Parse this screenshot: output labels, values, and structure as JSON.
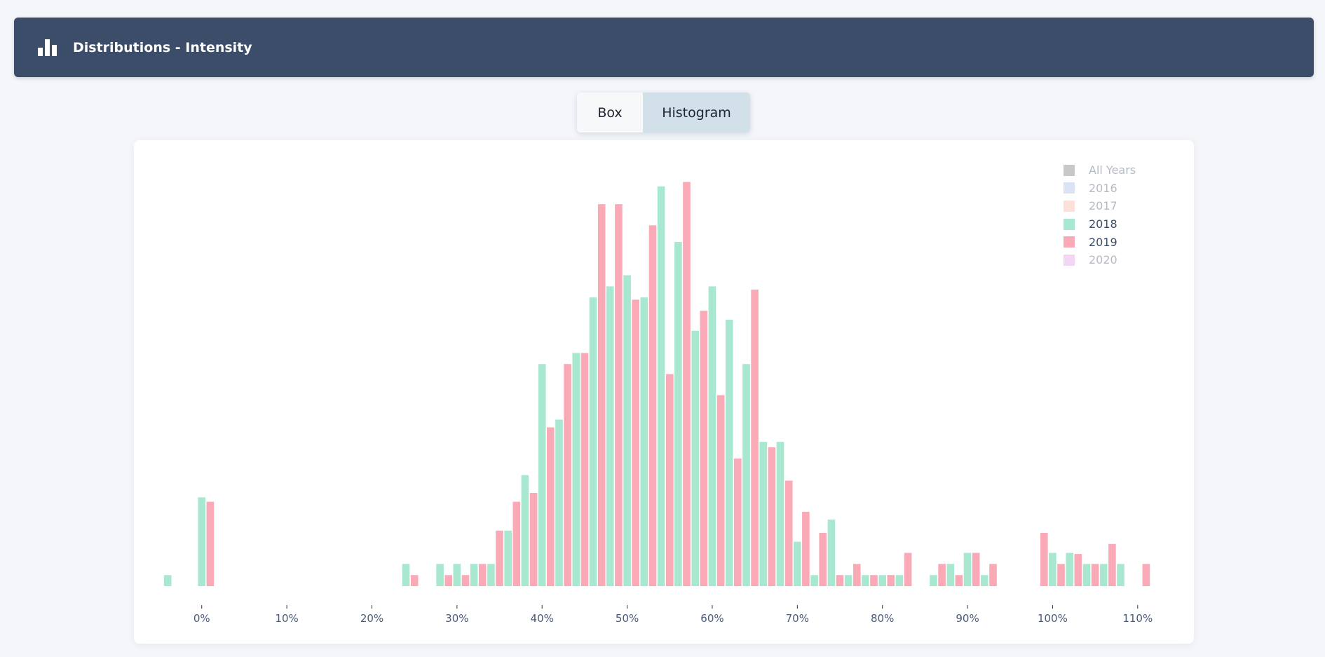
{
  "header": {
    "title": "Distributions - Intensity",
    "icon": "bar-chart-icon"
  },
  "toggle": {
    "box_label": "Box",
    "histogram_label": "Histogram",
    "active": "Histogram"
  },
  "legend": {
    "items": [
      {
        "label": "All Years",
        "color": "#c8c8c8",
        "active": false
      },
      {
        "label": "2016",
        "color": "#dde3f7",
        "active": false
      },
      {
        "label": "2017",
        "color": "#fde0da",
        "active": false
      },
      {
        "label": "2018",
        "color": "#a8e8d0",
        "active": true
      },
      {
        "label": "2019",
        "color": "#f9aab6",
        "active": true
      },
      {
        "label": "2020",
        "color": "#f3d5f5",
        "active": false
      }
    ]
  },
  "colors": {
    "inactive_text": "#b4bac6",
    "active_text": "#3c4d69"
  },
  "chart_data": {
    "type": "bar",
    "x_unit": "percent",
    "bin_width": 2,
    "xlim": [
      -5.5,
      111.5
    ],
    "x_ticks": [
      0,
      10,
      20,
      30,
      40,
      50,
      60,
      70,
      80,
      90,
      100,
      110
    ],
    "x_tick_labels": [
      "0%",
      "10%",
      "20%",
      "30%",
      "40%",
      "50%",
      "60%",
      "70%",
      "80%",
      "90%",
      "100%",
      "110%"
    ],
    "ylim": [
      0,
      37
    ],
    "series": [
      {
        "name": "2018",
        "color": "#a8e8d0",
        "points": [
          [
            -4,
            1
          ],
          [
            0,
            8
          ],
          [
            24,
            2
          ],
          [
            28,
            2
          ],
          [
            30,
            2
          ],
          [
            32,
            2
          ],
          [
            34,
            2
          ],
          [
            36,
            5
          ],
          [
            38,
            10
          ],
          [
            40,
            20
          ],
          [
            42,
            15
          ],
          [
            44,
            21
          ],
          [
            46,
            26
          ],
          [
            48,
            27
          ],
          [
            50,
            28
          ],
          [
            52,
            26
          ],
          [
            54,
            36
          ],
          [
            56,
            31
          ],
          [
            58,
            23
          ],
          [
            60,
            27
          ],
          [
            62,
            24
          ],
          [
            64,
            20
          ],
          [
            66,
            13
          ],
          [
            68,
            13
          ],
          [
            70,
            4
          ],
          [
            72,
            1
          ],
          [
            74,
            6
          ],
          [
            76,
            1
          ],
          [
            78,
            1
          ],
          [
            80,
            1
          ],
          [
            82,
            1
          ],
          [
            86,
            1
          ],
          [
            88,
            2
          ],
          [
            90,
            3
          ],
          [
            92,
            1
          ],
          [
            100,
            3
          ],
          [
            102,
            3
          ],
          [
            104,
            2
          ],
          [
            106,
            2
          ],
          [
            108,
            2
          ]
        ]
      },
      {
        "name": "2019",
        "color": "#f9aab6",
        "points": [
          [
            1,
            7.6
          ],
          [
            25,
            1
          ],
          [
            29,
            1
          ],
          [
            31,
            1
          ],
          [
            33,
            2
          ],
          [
            35,
            5
          ],
          [
            37,
            7.6
          ],
          [
            39,
            8.4
          ],
          [
            41,
            14.3
          ],
          [
            43,
            20
          ],
          [
            45,
            21
          ],
          [
            47,
            34.4
          ],
          [
            49,
            34.4
          ],
          [
            51,
            25.8
          ],
          [
            53,
            32.5
          ],
          [
            55,
            19.1
          ],
          [
            57,
            36.4
          ],
          [
            59,
            24.8
          ],
          [
            61,
            17.2
          ],
          [
            63,
            11.5
          ],
          [
            65,
            26.7
          ],
          [
            67,
            12.5
          ],
          [
            69,
            9.5
          ],
          [
            71,
            6.7
          ],
          [
            73,
            4.8
          ],
          [
            75,
            1
          ],
          [
            77,
            2
          ],
          [
            79,
            1
          ],
          [
            81,
            1
          ],
          [
            83,
            3
          ],
          [
            87,
            2
          ],
          [
            89,
            1
          ],
          [
            91,
            3
          ],
          [
            93,
            2
          ],
          [
            99,
            4.8
          ],
          [
            101,
            2
          ],
          [
            103,
            2.9
          ],
          [
            105,
            2
          ],
          [
            107,
            3.8
          ],
          [
            111,
            2
          ]
        ]
      }
    ]
  }
}
